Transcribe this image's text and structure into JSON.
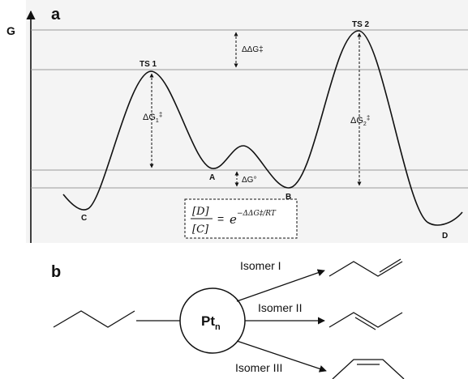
{
  "panel_a": {
    "letter": "a",
    "y_axis_label": "G",
    "points": {
      "ts1": "TS 1",
      "ts2": "TS 2",
      "a": "A",
      "b": "B",
      "c": "C",
      "d": "D"
    },
    "delta_ddg": "ΔΔG‡",
    "delta_g1": {
      "base": "ΔG",
      "sub": "1",
      "sup": "‡"
    },
    "delta_g2": {
      "base": "ΔG",
      "sub": "2",
      "sup": "‡"
    },
    "delta_g0": "ΔG°",
    "equation": {
      "numerator": "[D]",
      "denominator": "[C]",
      "equals": "=",
      "base": "e",
      "exponent": "−ΔΔG‡/RT"
    }
  },
  "panel_b": {
    "letter": "b",
    "catalyst": {
      "base": "Pt",
      "sub": "n"
    },
    "isomers": [
      "Isomer I",
      "Isomer II",
      "Isomer III"
    ]
  },
  "colors": {
    "panel_background": "#f4f4f4",
    "guide_lines": "#9a9a9a",
    "curve": "#111111"
  }
}
